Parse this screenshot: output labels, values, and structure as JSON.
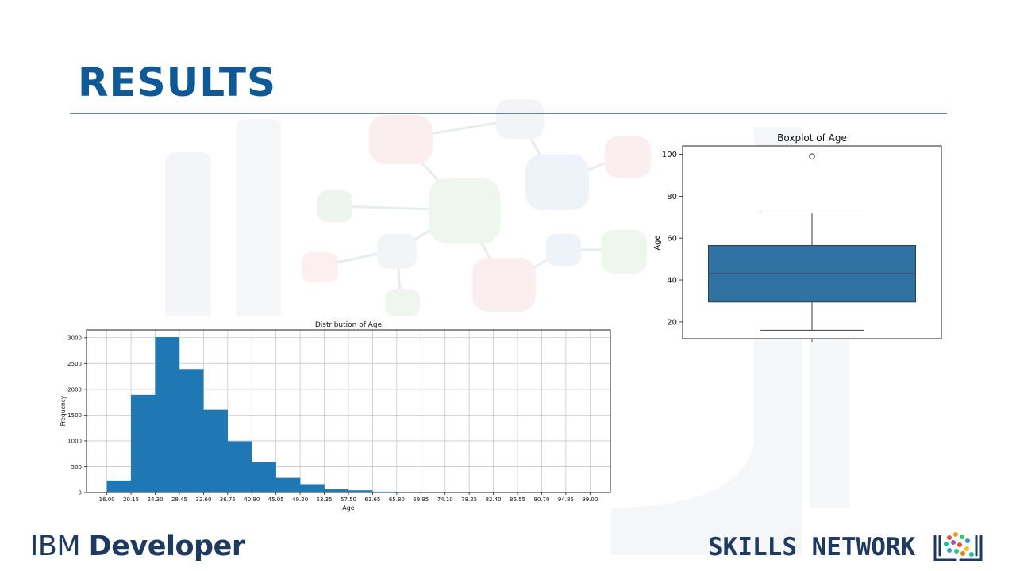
{
  "slide": {
    "title": "RESULTS"
  },
  "colors": {
    "title": "#0f5a96",
    "bar": "#1f77b4",
    "box": "#2f72a2",
    "logo": "#1e3a5f"
  },
  "logos": {
    "ibm_part1": "IBM ",
    "ibm_part2": "Developer",
    "skills_network": "SKILLS NETWORK"
  },
  "chart_data": [
    {
      "type": "bar",
      "title": "Distribution of Age",
      "xlabel": "Age",
      "ylabel": "Frequency",
      "x_ticks": [
        "16.00",
        "20.15",
        "24.30",
        "28.45",
        "32.60",
        "36.75",
        "40.90",
        "45.05",
        "49.20",
        "53.35",
        "57.50",
        "61.65",
        "65.80",
        "69.95",
        "74.10",
        "78.25",
        "82.40",
        "86.55",
        "90.70",
        "94.85",
        "99.00"
      ],
      "bin_edges": [
        16.0,
        20.15,
        24.3,
        28.45,
        32.6,
        36.75,
        40.9,
        45.05,
        49.2,
        53.35,
        57.5,
        61.65,
        65.8,
        69.95,
        74.1,
        78.25,
        82.4,
        86.55,
        90.7,
        94.85,
        99.0
      ],
      "values": [
        230,
        1890,
        3010,
        2390,
        1600,
        990,
        590,
        280,
        160,
        60,
        40,
        15,
        8,
        5,
        3,
        2,
        1,
        1,
        1,
        1
      ],
      "ylim": [
        0,
        3150
      ],
      "y_ticks": [
        0,
        500,
        1000,
        1500,
        2000,
        2500,
        3000
      ],
      "xlim": [
        12.5,
        102.5
      ],
      "grid": true
    },
    {
      "type": "box",
      "title": "Boxplot of Age",
      "xlabel": "",
      "ylabel": "Age",
      "whisker_low": 16,
      "q1": 29.5,
      "median": 43,
      "q3": 56.5,
      "whisker_high": 72,
      "outliers": [
        99
      ],
      "ylim": [
        12,
        104
      ],
      "y_ticks": [
        20,
        40,
        60,
        80,
        100
      ],
      "grid": false
    }
  ]
}
